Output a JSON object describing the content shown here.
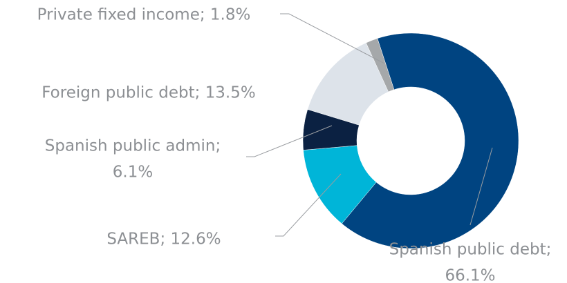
{
  "chart_data": {
    "type": "donut",
    "values": [
      66.1,
      12.6,
      6.1,
      13.5,
      1.8
    ],
    "value_labels": [
      [
        "Spanish public debt;",
        "66.1%"
      ],
      [
        "SAREB; 12.6%"
      ],
      [
        "Spanish public admin;",
        "6.1%"
      ],
      [
        "Foreign public debt; 13.5%"
      ],
      [
        "Private fixed income; 1.8%"
      ]
    ],
    "colors": [
      "#004481",
      "#00b5d8",
      "#0b2142",
      "#dde3ea",
      "#a5a8aa"
    ]
  }
}
